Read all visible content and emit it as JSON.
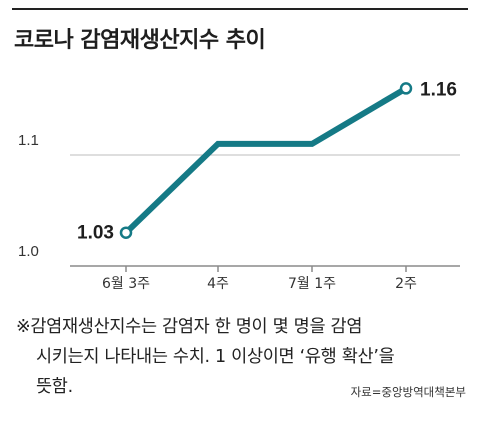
{
  "title": "코로나 감염재생산지수 추이",
  "chart_data": {
    "type": "line",
    "categories": [
      "6월 3주",
      "4주",
      "7월 1주",
      "2주"
    ],
    "series": [
      {
        "values": [
          1.03,
          1.11,
          1.11,
          1.16
        ]
      }
    ],
    "ylim": [
      1.0,
      1.2
    ],
    "y_ticks": [
      1.0,
      1.1
    ],
    "y_tick_labels": [
      "1.0",
      "1.1"
    ],
    "data_labels": [
      {
        "index": 0,
        "text": "1.03"
      },
      {
        "index": 3,
        "text": "1.16"
      }
    ],
    "grid": "horizontal",
    "colors": {
      "line": "#157a86",
      "grid": "#bdbdbd",
      "axis": "#8a8a8a"
    }
  },
  "note": {
    "line1": "※감염재생산지수는 감염자 한 명이 몇 명을 감염",
    "line2": "시키는지 나타내는 수치. 1 이상이면 ‘유행 확산’을",
    "line3": "뜻함."
  },
  "source": "자료=중앙방역대책본부"
}
